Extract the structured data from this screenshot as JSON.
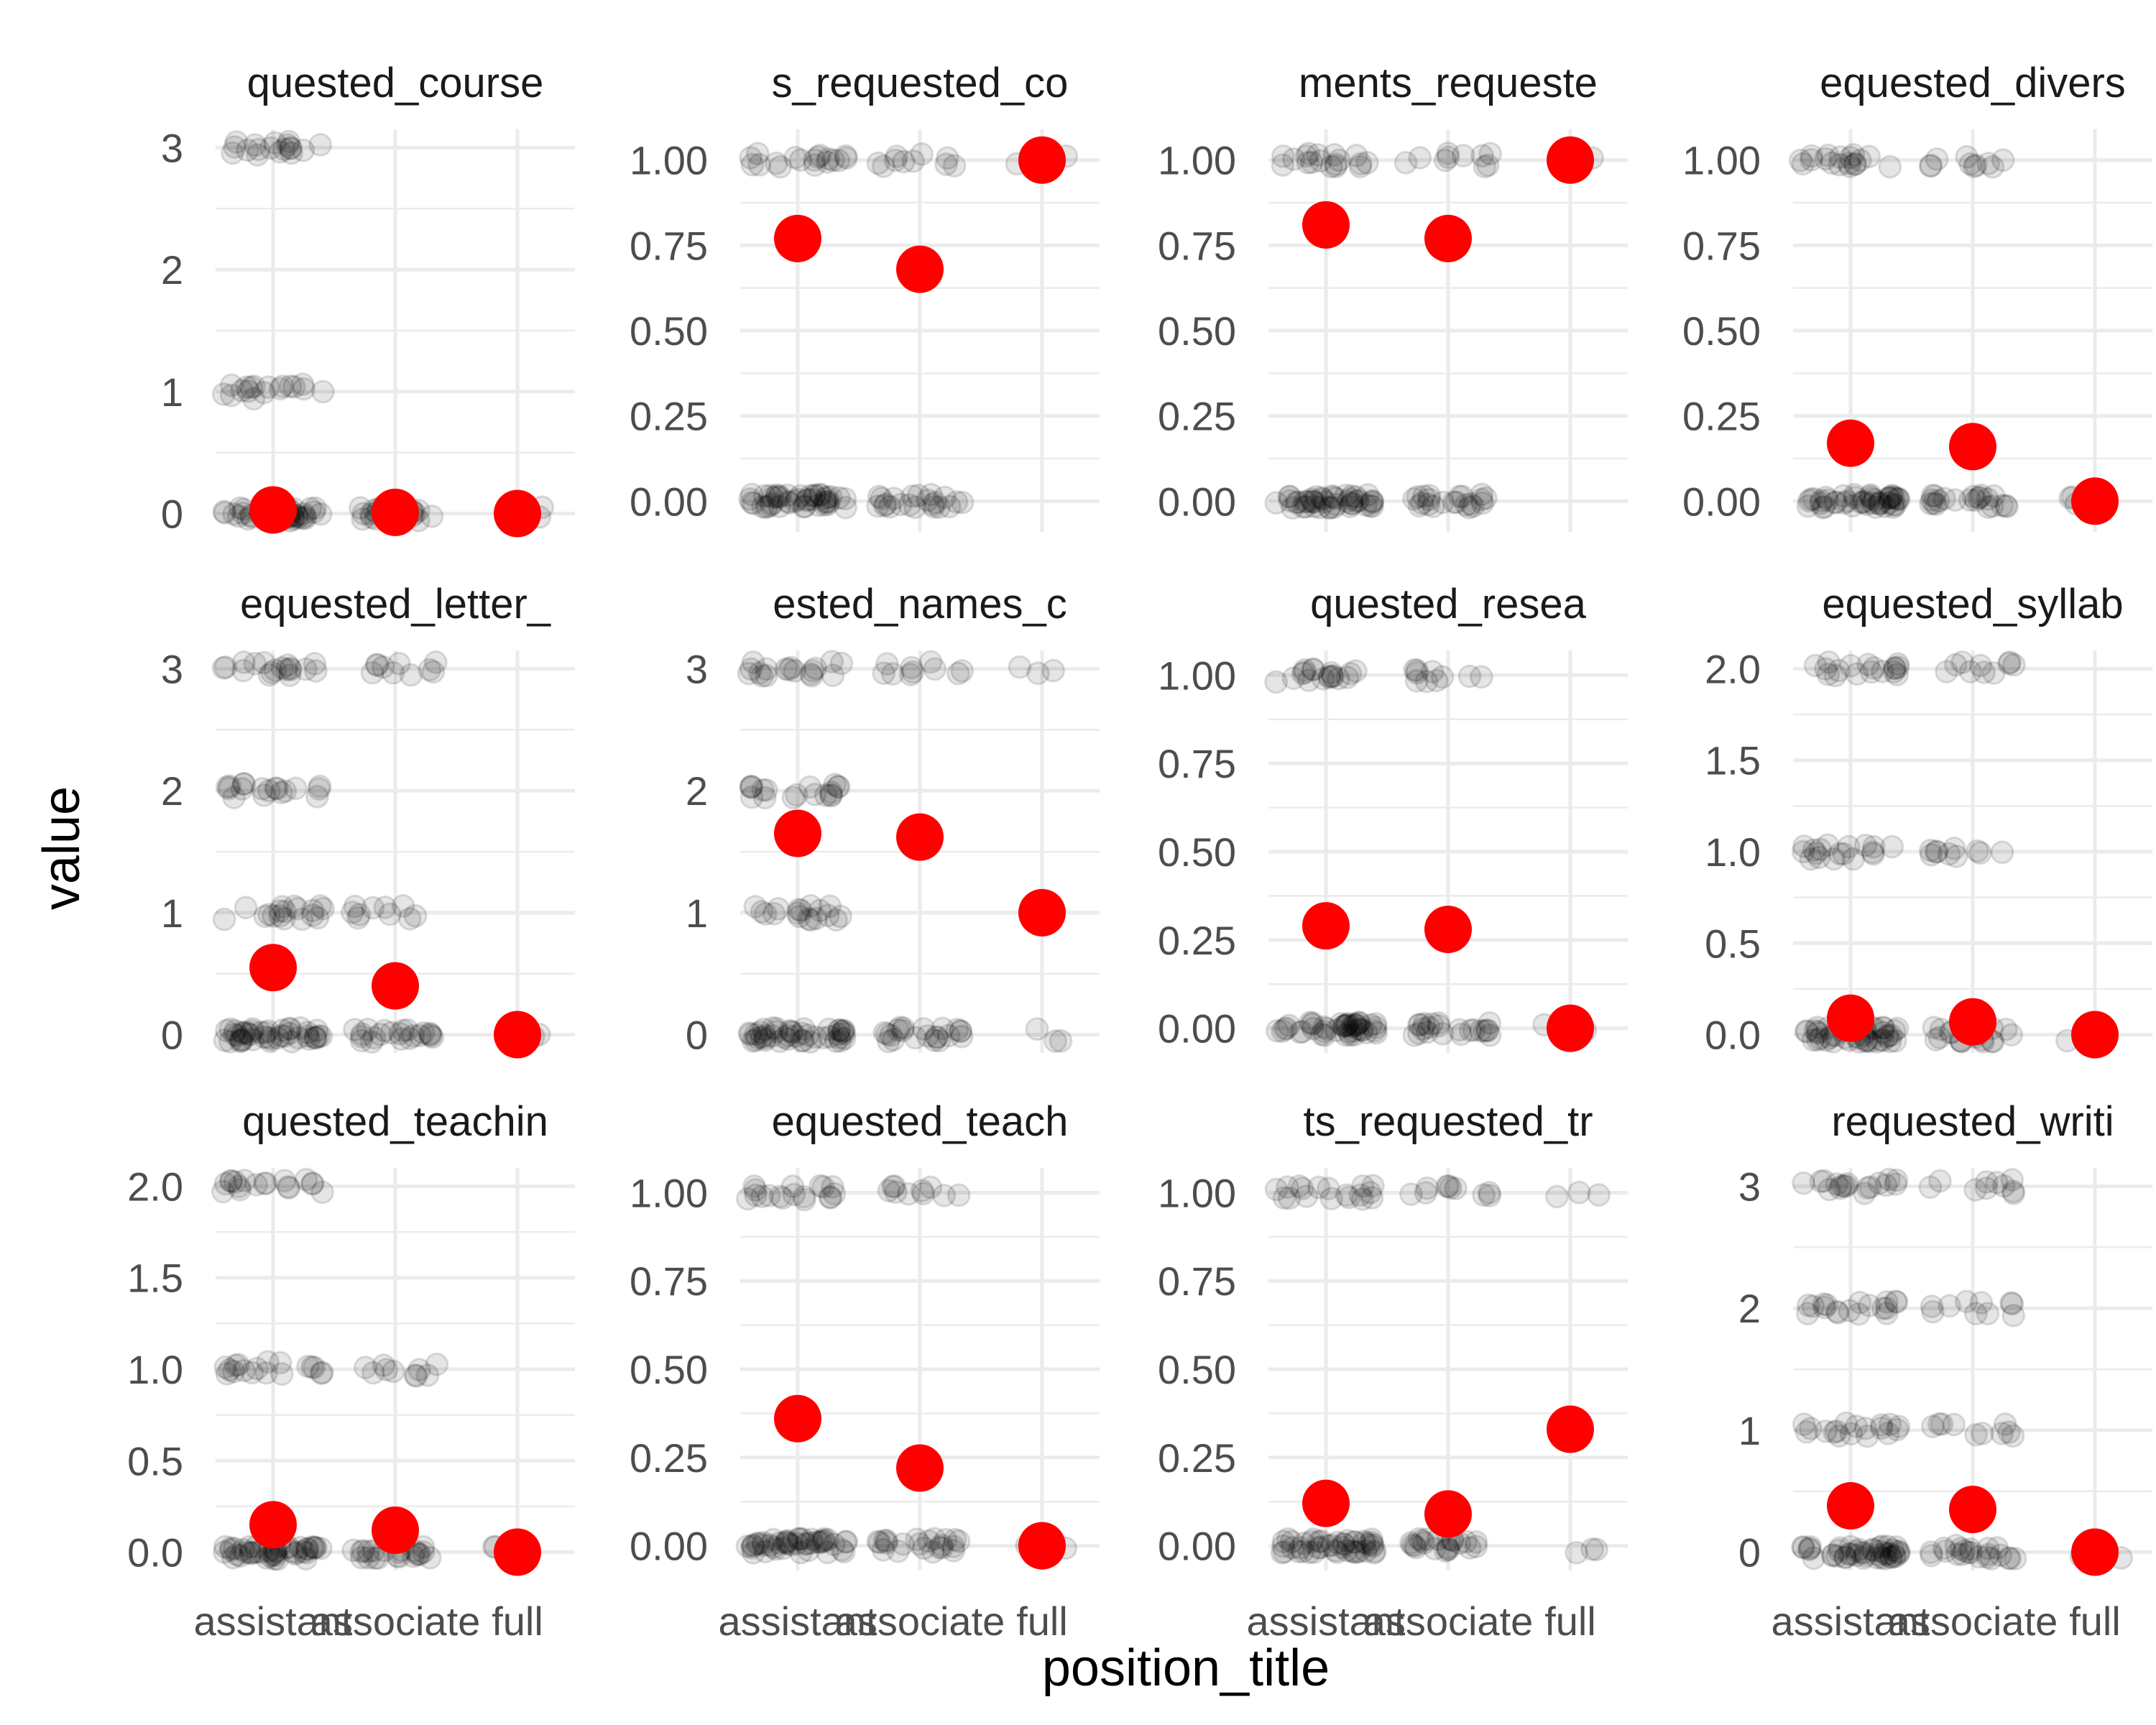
{
  "chart_data": {
    "type": "scatter",
    "xlabel": "position_title",
    "ylabel": "value",
    "categories": [
      "assistant",
      "associate",
      "full"
    ],
    "mean_point_color": "#FF0000",
    "raw_point_color": "#000000",
    "grid": true,
    "facets": [
      {
        "title": "quested_course",
        "yticks": [
          "0",
          "1",
          "2",
          "3"
        ],
        "ylim": [
          -0.15,
          3.15
        ],
        "raw": [
          {
            "category": "assistant",
            "values": [
              0,
              1,
              3
            ]
          },
          {
            "category": "associate",
            "values": [
              0
            ]
          },
          {
            "category": "full",
            "values": [
              0
            ]
          }
        ],
        "means": [
          0.03,
          0.01,
          0.0
        ]
      },
      {
        "title": "s_requested_co",
        "yticks": [
          "0.00",
          "0.25",
          "0.50",
          "0.75",
          "1.00"
        ],
        "ylim": [
          -0.09,
          1.09
        ],
        "raw": [
          {
            "category": "assistant",
            "values": [
              0,
              1
            ]
          },
          {
            "category": "associate",
            "values": [
              0,
              1
            ]
          },
          {
            "category": "full",
            "values": [
              1
            ]
          }
        ],
        "means": [
          0.77,
          0.68,
          1.0
        ]
      },
      {
        "title": "ments_requeste",
        "yticks": [
          "0.00",
          "0.25",
          "0.50",
          "0.75",
          "1.00"
        ],
        "ylim": [
          -0.09,
          1.09
        ],
        "raw": [
          {
            "category": "assistant",
            "values": [
              0,
              1
            ]
          },
          {
            "category": "associate",
            "values": [
              0,
              1
            ]
          },
          {
            "category": "full",
            "values": [
              1
            ]
          }
        ],
        "means": [
          0.81,
          0.77,
          1.0
        ]
      },
      {
        "title": "equested_divers",
        "yticks": [
          "0.00",
          "0.25",
          "0.50",
          "0.75",
          "1.00"
        ],
        "ylim": [
          -0.09,
          1.09
        ],
        "raw": [
          {
            "category": "assistant",
            "values": [
              0,
              1
            ]
          },
          {
            "category": "associate",
            "values": [
              0,
              1
            ]
          },
          {
            "category": "full",
            "values": [
              0
            ]
          }
        ],
        "means": [
          0.17,
          0.16,
          0.0
        ]
      },
      {
        "title": "equested_letter_",
        "yticks": [
          "0",
          "1",
          "2",
          "3"
        ],
        "ylim": [
          -0.15,
          3.15
        ],
        "raw": [
          {
            "category": "assistant",
            "values": [
              0,
              1,
              2,
              3
            ]
          },
          {
            "category": "associate",
            "values": [
              0,
              1,
              3
            ]
          },
          {
            "category": "full",
            "values": [
              0
            ]
          }
        ],
        "means": [
          0.55,
          0.4,
          0.0
        ]
      },
      {
        "title": "ested_names_c",
        "yticks": [
          "0",
          "1",
          "2",
          "3"
        ],
        "ylim": [
          -0.15,
          3.15
        ],
        "raw": [
          {
            "category": "assistant",
            "values": [
              0,
              1,
              2,
              3
            ]
          },
          {
            "category": "associate",
            "values": [
              0,
              3
            ]
          },
          {
            "category": "full",
            "values": [
              0,
              3
            ]
          }
        ],
        "means": [
          1.65,
          1.62,
          1.0
        ]
      },
      {
        "title": "quested_resea",
        "yticks": [
          "0.00",
          "0.25",
          "0.50",
          "0.75",
          "1.00"
        ],
        "ylim": [
          -0.07,
          1.07
        ],
        "raw": [
          {
            "category": "assistant",
            "values": [
              0,
              1
            ]
          },
          {
            "category": "associate",
            "values": [
              0,
              1
            ]
          },
          {
            "category": "full",
            "values": [
              0
            ]
          }
        ],
        "means": [
          0.29,
          0.28,
          0.0
        ]
      },
      {
        "title": "equested_syllab",
        "yticks": [
          "0.0",
          "0.5",
          "1.0",
          "1.5",
          "2.0"
        ],
        "ylim": [
          -0.1,
          2.1
        ],
        "raw": [
          {
            "category": "assistant",
            "values": [
              0,
              1,
              2
            ]
          },
          {
            "category": "associate",
            "values": [
              0,
              1,
              2
            ]
          },
          {
            "category": "full",
            "values": [
              0
            ]
          }
        ],
        "means": [
          0.09,
          0.07,
          0.0
        ]
      },
      {
        "title": "quested_teachin",
        "yticks": [
          "0.0",
          "0.5",
          "1.0",
          "1.5",
          "2.0"
        ],
        "ylim": [
          -0.1,
          2.1
        ],
        "raw": [
          {
            "category": "assistant",
            "values": [
              0,
              1,
              2
            ]
          },
          {
            "category": "associate",
            "values": [
              0,
              1
            ]
          },
          {
            "category": "full",
            "values": [
              0
            ]
          }
        ],
        "means": [
          0.15,
          0.12,
          0.0
        ]
      },
      {
        "title": "equested_teach",
        "yticks": [
          "0.00",
          "0.25",
          "0.50",
          "0.75",
          "1.00"
        ],
        "ylim": [
          -0.07,
          1.07
        ],
        "raw": [
          {
            "category": "assistant",
            "values": [
              0,
              1
            ]
          },
          {
            "category": "associate",
            "values": [
              0,
              1
            ]
          },
          {
            "category": "full",
            "values": [
              0
            ]
          }
        ],
        "means": [
          0.36,
          0.22,
          0.0
        ]
      },
      {
        "title": "ts_requested_tr",
        "yticks": [
          "0.00",
          "0.25",
          "0.50",
          "0.75",
          "1.00"
        ],
        "ylim": [
          -0.07,
          1.07
        ],
        "raw": [
          {
            "category": "assistant",
            "values": [
              0,
              1
            ]
          },
          {
            "category": "associate",
            "values": [
              0,
              1
            ]
          },
          {
            "category": "full",
            "values": [
              0,
              1
            ]
          }
        ],
        "means": [
          0.12,
          0.09,
          0.33
        ]
      },
      {
        "title": "requested_writi",
        "yticks": [
          "0",
          "1",
          "2",
          "3"
        ],
        "ylim": [
          -0.15,
          3.15
        ],
        "raw": [
          {
            "category": "assistant",
            "values": [
              0,
              1,
              2,
              3
            ]
          },
          {
            "category": "associate",
            "values": [
              0,
              1,
              2,
              3
            ]
          },
          {
            "category": "full",
            "values": [
              0
            ]
          }
        ],
        "means": [
          0.38,
          0.35,
          0.0
        ]
      }
    ]
  }
}
